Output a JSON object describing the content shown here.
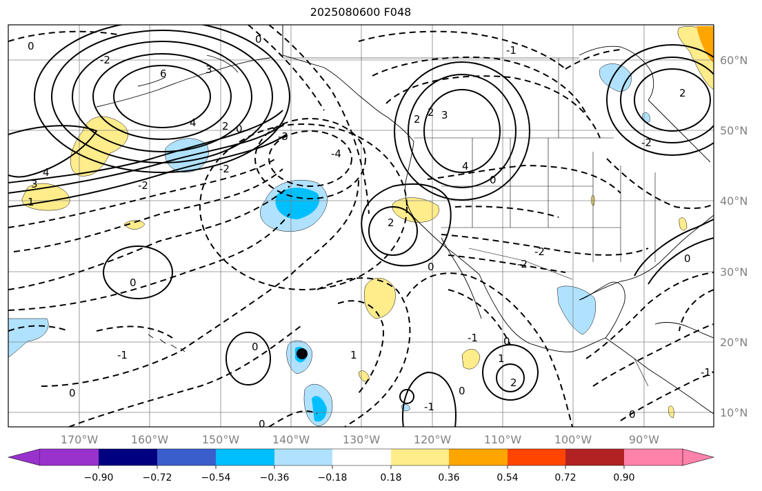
{
  "title": "2025080600 F048",
  "colors": {
    "land": "#ffffff",
    "grid": "#808080",
    "coast": "#000000",
    "purple": "#9932cc",
    "navy": "#000080",
    "royal": "#3a5fcd",
    "cyan": "#00bfff",
    "lightblue": "#b0e2ff",
    "white": "#ffffff",
    "yellow": "#ffec8b",
    "orange": "#ffa500",
    "redorange": "#ff4500",
    "firebrick": "#b22222",
    "pink": "#ff82ab"
  },
  "longitude_labels": [
    "170°W",
    "160°W",
    "150°W",
    "140°W",
    "130°W",
    "120°W",
    "110°W",
    "100°W",
    "90°W"
  ],
  "latitude_labels": [
    "60°N",
    "50°N",
    "40°N",
    "30°N",
    "20°N",
    "10°N"
  ],
  "colorbar": {
    "ticks": [
      "−0.90",
      "−0.72",
      "−0.54",
      "−0.36",
      "−0.18",
      "0.18",
      "0.36",
      "0.54",
      "0.72",
      "0.90"
    ],
    "bins": [
      "purple",
      "navy",
      "royal",
      "cyan",
      "lightblue",
      "white",
      "yellow",
      "orange",
      "redorange",
      "firebrick",
      "pink"
    ]
  },
  "contour_labels": [
    {
      "text": "0"
    },
    {
      "text": "-2"
    },
    {
      "text": "3"
    },
    {
      "text": "6"
    },
    {
      "text": "4"
    },
    {
      "text": "2"
    },
    {
      "text": "0"
    },
    {
      "text": "-3"
    },
    {
      "text": "-2"
    },
    {
      "text": "-4"
    },
    {
      "text": "4"
    },
    {
      "text": "3"
    },
    {
      "text": "1"
    },
    {
      "text": "-2"
    },
    {
      "text": "0"
    },
    {
      "text": "2"
    },
    {
      "text": "3"
    },
    {
      "text": "4"
    },
    {
      "text": "2"
    },
    {
      "text": "0"
    },
    {
      "text": "2"
    },
    {
      "text": "0"
    },
    {
      "text": "2"
    },
    {
      "text": "-2"
    },
    {
      "text": "-2"
    },
    {
      "text": "0"
    },
    {
      "text": "-1"
    },
    {
      "text": "0"
    },
    {
      "text": "-1"
    },
    {
      "text": "0"
    },
    {
      "text": "0"
    },
    {
      "text": "1"
    },
    {
      "text": "2"
    },
    {
      "text": "0"
    },
    {
      "text": "1"
    },
    {
      "text": "-1"
    },
    {
      "text": "0"
    },
    {
      "text": "0"
    },
    {
      "text": "-1"
    },
    {
      "text": "0"
    },
    {
      "text": "-1"
    },
    {
      "text": "-2"
    }
  ]
}
